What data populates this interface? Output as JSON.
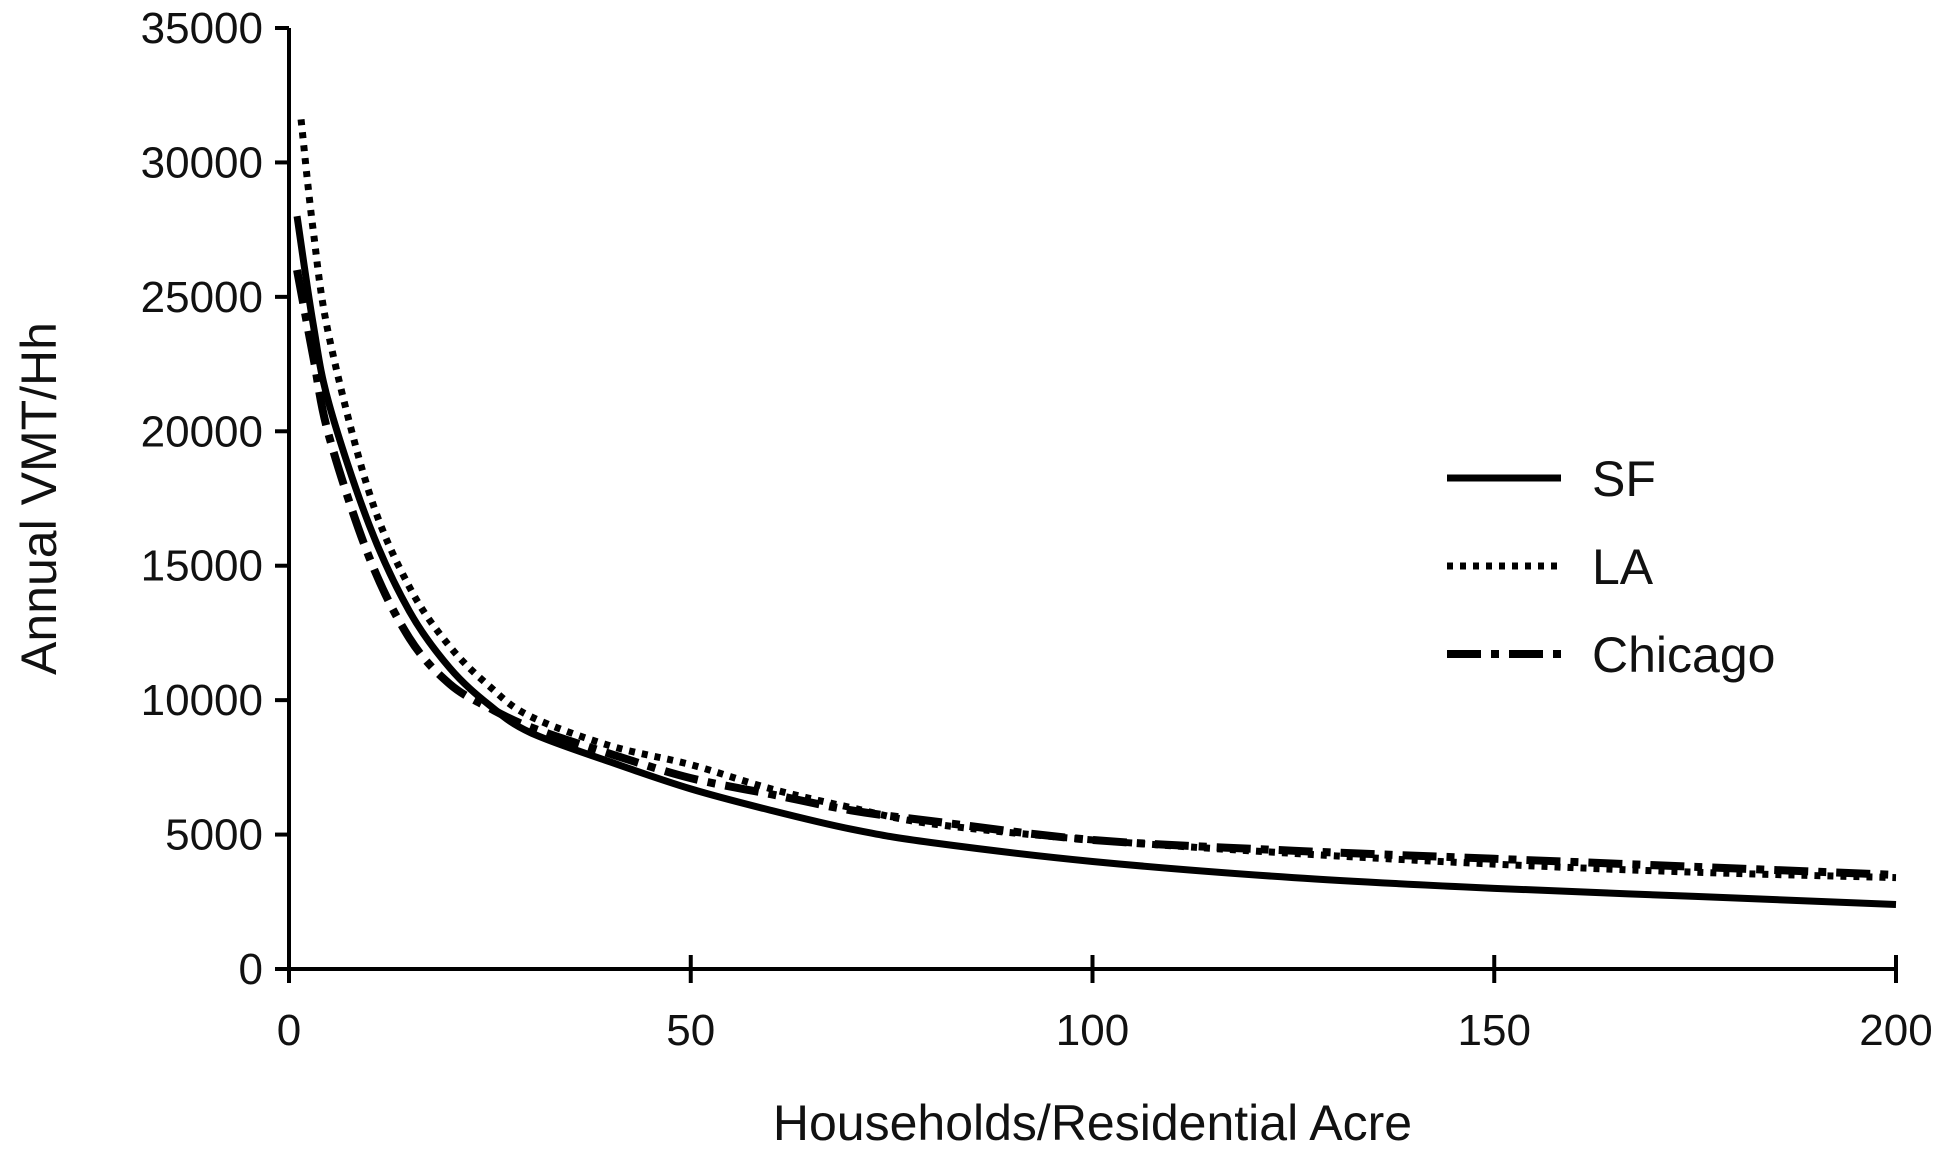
{
  "chart_data": {
    "type": "line",
    "title": "",
    "xlabel": "Households/Residential Acre",
    "ylabel": "Annual VMT/Hh",
    "xlim": [
      0,
      200
    ],
    "ylim": [
      0,
      35000
    ],
    "xticks": [
      0,
      50,
      100,
      150,
      200
    ],
    "yticks": [
      0,
      5000,
      10000,
      15000,
      20000,
      25000,
      30000,
      35000
    ],
    "grid": false,
    "legend_position": "right",
    "series": [
      {
        "name": "SF",
        "style": "solid",
        "color": "#000000",
        "x": [
          1,
          3,
          5,
          10,
          15,
          20,
          25,
          30,
          40,
          50,
          60,
          70,
          80,
          100,
          125,
          150,
          175,
          200
        ],
        "y": [
          28000,
          24000,
          21000,
          16500,
          13300,
          11200,
          9800,
          8800,
          7700,
          6700,
          5900,
          5200,
          4700,
          4000,
          3400,
          3000,
          2700,
          2400
        ]
      },
      {
        "name": "LA",
        "style": "dotted",
        "color": "#000000",
        "x": [
          1.5,
          3,
          5,
          10,
          15,
          20,
          25,
          30,
          40,
          50,
          60,
          70,
          80,
          100,
          125,
          150,
          175,
          200
        ],
        "y": [
          31600,
          27500,
          23500,
          17700,
          14200,
          12000,
          10500,
          9400,
          8300,
          7600,
          6700,
          6000,
          5400,
          4800,
          4300,
          3900,
          3600,
          3400
        ]
      },
      {
        "name": "Chicago",
        "style": "dashdot",
        "color": "#000000",
        "x": [
          1,
          3,
          5,
          10,
          15,
          20,
          25,
          30,
          40,
          50,
          60,
          70,
          80,
          100,
          125,
          150,
          175,
          200
        ],
        "y": [
          26000,
          22800,
          19800,
          15300,
          12300,
          10600,
          9700,
          9000,
          8000,
          7100,
          6500,
          5900,
          5500,
          4800,
          4400,
          4100,
          3800,
          3500
        ]
      }
    ]
  }
}
